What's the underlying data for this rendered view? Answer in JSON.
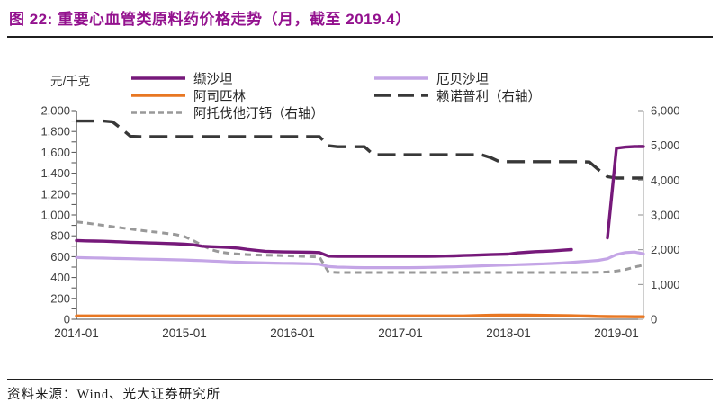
{
  "header": {
    "title": "图 22: 重要心血管类原料药价格走势（月，截至 2019.4）"
  },
  "chart": {
    "unit_label": "元/千克"
  },
  "footer": {
    "source": "资料来源：Wind、光大证券研究所"
  },
  "colors": {
    "title": "#93118E",
    "valsartan": "#76197A",
    "irbesartan": "#C4A5E6",
    "aspirin": "#E87722",
    "lisinopril": "#383838",
    "atorvastatin": "#999999",
    "axis_text": "#404040",
    "spine_dark": "#4d4d4d",
    "spine_light": "#b3b3b3",
    "divider": "#1f1f1f"
  },
  "chart_data": {
    "type": "line",
    "title": "重要心血管类原料药价格走势（月，截至 2019.4）",
    "unit": "元/千克",
    "y_left_range": [
      0,
      2000
    ],
    "y_left_tick_step": 200,
    "y_right_range": [
      0,
      6000
    ],
    "y_right_tick_step": 1000,
    "left_tick_labels": [
      "0",
      "200",
      "400",
      "600",
      "800",
      "1,000",
      "1,200",
      "1,400",
      "1,600",
      "1,800",
      "2,000"
    ],
    "right_tick_labels": [
      "0",
      "1,000",
      "2,000",
      "3,000",
      "4,000",
      "5,000",
      "6,000"
    ],
    "x_tick_labels": [
      "2014-01",
      "2015-01",
      "2016-01",
      "2017-01",
      "2018-01",
      "2019-01"
    ],
    "x": [
      "2014-01",
      "2014-02",
      "2014-03",
      "2014-04",
      "2014-05",
      "2014-06",
      "2014-07",
      "2014-08",
      "2014-09",
      "2014-10",
      "2014-11",
      "2014-12",
      "2015-01",
      "2015-02",
      "2015-03",
      "2015-04",
      "2015-05",
      "2015-06",
      "2015-07",
      "2015-08",
      "2015-09",
      "2015-10",
      "2015-11",
      "2015-12",
      "2016-01",
      "2016-02",
      "2016-03",
      "2016-04",
      "2016-05",
      "2016-06",
      "2016-07",
      "2016-08",
      "2016-09",
      "2016-10",
      "2016-11",
      "2016-12",
      "2017-01",
      "2017-02",
      "2017-03",
      "2017-04",
      "2017-05",
      "2017-06",
      "2017-07",
      "2017-08",
      "2017-09",
      "2017-10",
      "2017-11",
      "2017-12",
      "2018-01",
      "2018-02",
      "2018-03",
      "2018-04",
      "2018-05",
      "2018-06",
      "2018-07",
      "2018-08",
      "2018-09",
      "2018-10",
      "2018-11",
      "2018-12",
      "2019-01",
      "2019-02",
      "2019-03",
      "2019-04"
    ],
    "legend_position": "top",
    "series": [
      {
        "name": "缬沙坦",
        "axis": "left",
        "color": "#76197A",
        "dash": null,
        "width": 3.4,
        "values": [
          755,
          752,
          750,
          748,
          745,
          742,
          738,
          735,
          732,
          730,
          727,
          724,
          720,
          714,
          700,
          696,
          692,
          688,
          682,
          670,
          660,
          652,
          648,
          646,
          645,
          644,
          642,
          640,
          605,
          603,
          603,
          603,
          603,
          603,
          603,
          603,
          603,
          603,
          603,
          603,
          604,
          606,
          608,
          611,
          614,
          617,
          620,
          622,
          625,
          636,
          642,
          648,
          652,
          656,
          662,
          668,
          null,
          null,
          null,
          780,
          1640,
          1650,
          1655,
          1655
        ]
      },
      {
        "name": "厄贝沙坦",
        "axis": "left",
        "color": "#C4A5E6",
        "dash": null,
        "width": 3.2,
        "values": [
          592,
          590,
          588,
          586,
          584,
          582,
          580,
          578,
          576,
          574,
          572,
          570,
          568,
          565,
          562,
          558,
          554,
          550,
          547,
          544,
          542,
          540,
          538,
          536,
          535,
          534,
          532,
          528,
          505,
          500,
          498,
          496,
          495,
          495,
          495,
          495,
          495,
          495,
          496,
          497,
          499,
          501,
          503,
          506,
          509,
          512,
          515,
          518,
          520,
          523,
          526,
          529,
          532,
          535,
          540,
          546,
          552,
          558,
          565,
          580,
          620,
          640,
          645,
          628
        ]
      },
      {
        "name": "阿司匹林",
        "axis": "left",
        "color": "#E87722",
        "dash": null,
        "width": 3.4,
        "values": [
          32,
          32,
          32,
          32,
          32,
          32,
          32,
          32,
          32,
          32,
          32,
          32,
          32,
          32,
          32,
          32,
          32,
          32,
          32,
          32,
          32,
          32,
          32,
          32,
          32,
          32,
          32,
          32,
          32,
          32,
          32,
          32,
          32,
          32,
          32,
          32,
          32,
          32,
          32,
          32,
          32,
          32,
          32,
          32,
          34,
          36,
          38,
          40,
          40,
          40,
          39,
          38,
          37,
          36,
          35,
          34,
          32,
          30,
          28,
          26,
          25,
          25,
          24,
          24
        ]
      },
      {
        "name": "赖诺普利（右轴）",
        "axis": "right",
        "color": "#383838",
        "dash": "20 9",
        "width": 3.4,
        "values": [
          5700,
          5700,
          5700,
          5700,
          5680,
          5480,
          5260,
          5250,
          5250,
          5250,
          5250,
          5250,
          5250,
          5250,
          5250,
          5250,
          5250,
          5250,
          5250,
          5250,
          5250,
          5250,
          5250,
          5250,
          5250,
          5250,
          5250,
          5250,
          4990,
          4960,
          4960,
          4960,
          4960,
          4730,
          4730,
          4730,
          4730,
          4730,
          4730,
          4730,
          4730,
          4730,
          4730,
          4730,
          4730,
          4730,
          4650,
          4530,
          4530,
          4530,
          4530,
          4530,
          4530,
          4530,
          4530,
          4530,
          4530,
          4520,
          4300,
          4100,
          4060,
          4060,
          4060,
          4060
        ]
      },
      {
        "name": "阿托伐他汀钙（右轴）",
        "axis": "right",
        "color": "#999999",
        "dash": "7 5",
        "width": 3.0,
        "values": [
          2800,
          2770,
          2735,
          2700,
          2665,
          2630,
          2595,
          2560,
          2530,
          2500,
          2470,
          2440,
          2380,
          2260,
          2120,
          2000,
          1930,
          1895,
          1875,
          1860,
          1850,
          1845,
          1840,
          1830,
          1820,
          1810,
          1800,
          1790,
          1360,
          1345,
          1345,
          1345,
          1345,
          1345,
          1345,
          1345,
          1345,
          1345,
          1345,
          1345,
          1345,
          1345,
          1345,
          1345,
          1345,
          1345,
          1345,
          1345,
          1345,
          1345,
          1345,
          1345,
          1345,
          1345,
          1345,
          1345,
          1345,
          1345,
          1350,
          1360,
          1390,
          1430,
          1500,
          1560
        ]
      }
    ]
  }
}
